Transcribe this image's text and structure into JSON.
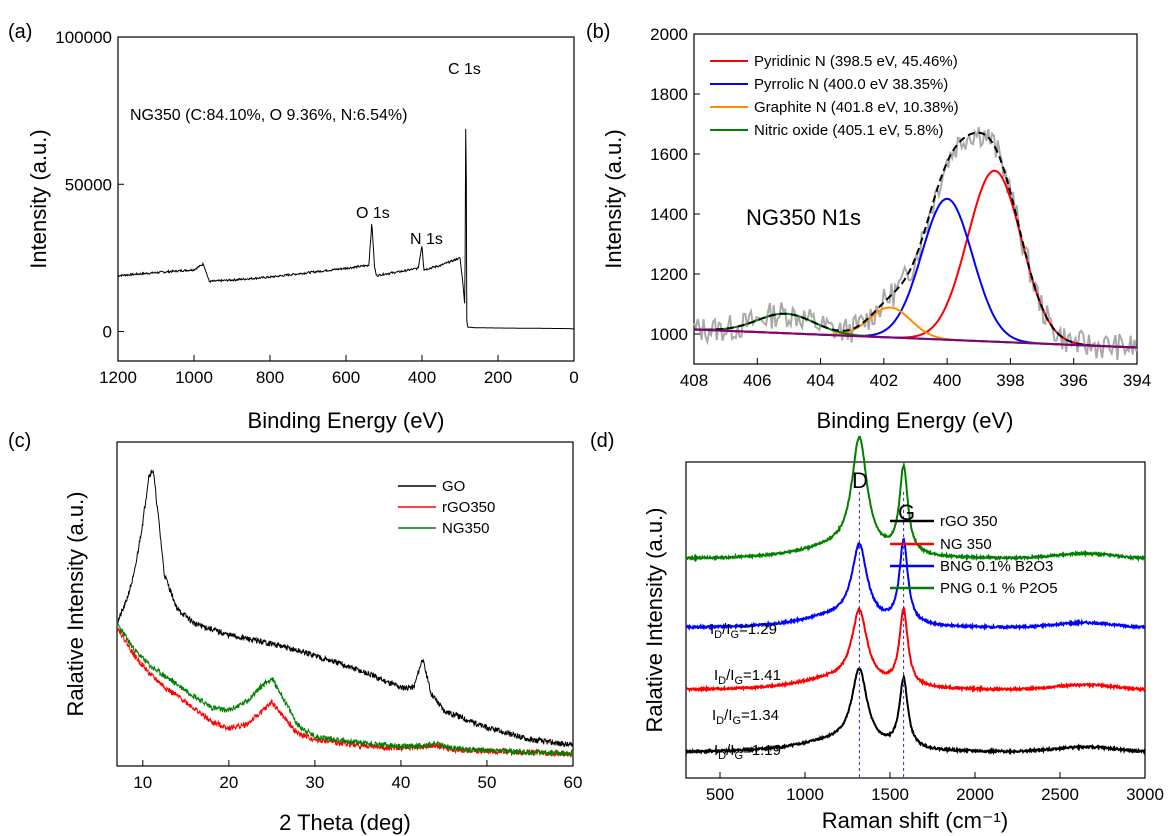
{
  "panel_labels": [
    "(a)",
    "(b)",
    "(c)",
    "(d)"
  ],
  "chart_data": [
    {
      "type": "line",
      "panel": "(a)",
      "xlabel": "Binding Energy (eV)",
      "ylabel": "Intensity (a.u.)",
      "xlim": [
        1200,
        0
      ],
      "ylim": [
        -10000,
        100000
      ],
      "xticks": [
        1200,
        1000,
        800,
        600,
        400,
        200,
        0
      ],
      "yticks": [
        0,
        50000,
        100000
      ],
      "annotations": [
        "NG350 (C:84.10%, O 9.36%, N:6.54%)",
        "C 1s",
        "O 1s",
        "N 1s"
      ],
      "series": [
        {
          "color": "#000000",
          "x": [
            1200,
            1150,
            1100,
            1050,
            1000,
            975,
            970,
            960,
            900,
            800,
            700,
            600,
            540,
            532,
            525,
            520,
            500,
            450,
            410,
            400,
            395,
            380,
            350,
            320,
            300,
            292,
            287,
            284.5,
            282,
            280,
            260,
            200,
            100,
            10,
            0
          ],
          "y": [
            19000,
            19500,
            20000,
            20500,
            21000,
            23000,
            21000,
            17000,
            17500,
            18500,
            20000,
            21500,
            22500,
            37000,
            22000,
            19000,
            19500,
            20500,
            21500,
            29500,
            21000,
            21500,
            22500,
            24000,
            25000,
            16000,
            8000,
            84000,
            4000,
            1500,
            1300,
            1200,
            1100,
            1000,
            800
          ]
        }
      ]
    },
    {
      "type": "line",
      "panel": "(b)",
      "title": "NG350 N1s",
      "xlabel": "Binding Energy (eV)",
      "ylabel": "Intensity (a.u.)",
      "xlim": [
        408,
        394
      ],
      "ylim": [
        900,
        2000
      ],
      "xticks": [
        408,
        406,
        404,
        402,
        400,
        398,
        396,
        394
      ],
      "yticks": [
        1000,
        1200,
        1400,
        1600,
        1800,
        2000
      ],
      "legend": [
        "Pyridinic N (398.5 eV, 45.46%)",
        "Pyrrolic N (400.0 eV 38.35%)",
        "Graphite N (401.8 eV, 10.38%)",
        "Nitric oxide (405.1 eV, 5.8%)"
      ],
      "series": [
        {
          "name": "Pyridinic N (398.5 eV, 45.46%)",
          "color": "#ff0000",
          "center": 398.5,
          "height": 570,
          "sigma": 0.85
        },
        {
          "name": "Pyrrolic N (400.0 eV 38.35%)",
          "color": "#0000ff",
          "center": 400.0,
          "height": 470,
          "sigma": 0.8
        },
        {
          "name": "Graphite N (401.8 eV, 10.38%)",
          "color": "#ff8c00",
          "center": 401.8,
          "height": 100,
          "sigma": 0.65
        },
        {
          "name": "Nitric oxide (405.1 eV, 5.8%)",
          "color": "#008000",
          "center": 405.1,
          "height": 65,
          "sigma": 0.9
        },
        {
          "color": "#000000",
          "style": "dashed"
        },
        {
          "color": "#aaaaaa",
          "style": "noisy"
        },
        {
          "color": "#800080",
          "x": [
            408,
            394
          ],
          "y": [
            1015,
            955
          ]
        }
      ]
    },
    {
      "type": "line",
      "panel": "(c)",
      "xlabel": "2 Theta (deg)",
      "ylabel": "Ralative Intensity (a.u.)",
      "xlim": [
        7,
        60
      ],
      "xticks": [
        10,
        20,
        30,
        40,
        50,
        60
      ],
      "legend": [
        "GO",
        "rGO350",
        "NG350"
      ],
      "series": [
        {
          "name": "GO",
          "color": "#000000",
          "x": [
            7,
            8,
            9,
            10,
            10.7,
            11.2,
            11.8,
            12.5,
            14,
            16,
            20,
            25,
            30,
            35,
            40,
            41.5,
            42.5,
            43.5,
            45,
            50,
            55,
            60
          ],
          "y": [
            0.45,
            0.52,
            0.62,
            0.8,
            0.96,
            0.98,
            0.82,
            0.62,
            0.5,
            0.45,
            0.41,
            0.38,
            0.34,
            0.29,
            0.23,
            0.23,
            0.33,
            0.21,
            0.15,
            0.09,
            0.05,
            0.03
          ]
        },
        {
          "name": "rGO350",
          "color": "#ff0000",
          "x": [
            7,
            9,
            11,
            13,
            15,
            18,
            20,
            22,
            24,
            25,
            26,
            28,
            30,
            35,
            40,
            43,
            44,
            46,
            50,
            55,
            60
          ],
          "y": [
            0.44,
            0.34,
            0.27,
            0.22,
            0.18,
            0.11,
            0.09,
            0.1,
            0.15,
            0.18,
            0.14,
            0.07,
            0.05,
            0.03,
            0.02,
            0.025,
            0.03,
            0.015,
            0.01,
            0.005,
            0.0
          ]
        },
        {
          "name": "NG350",
          "color": "#008000",
          "x": [
            7,
            9,
            11,
            13,
            15,
            18,
            20,
            22,
            24,
            25,
            26,
            28,
            30,
            35,
            40,
            43,
            44,
            46,
            50,
            55,
            60
          ],
          "y": [
            0.45,
            0.36,
            0.3,
            0.26,
            0.22,
            0.16,
            0.15,
            0.18,
            0.24,
            0.26,
            0.21,
            0.1,
            0.06,
            0.04,
            0.025,
            0.03,
            0.035,
            0.02,
            0.012,
            0.006,
            0.002
          ]
        }
      ]
    },
    {
      "type": "line",
      "panel": "(d)",
      "xlabel": "Raman shift (cm⁻¹)",
      "ylabel": "Ralative Intensity (a.u.)",
      "xlim": [
        300,
        3000
      ],
      "xticks": [
        500,
        1000,
        1500,
        2000,
        2500,
        3000
      ],
      "legend": [
        "rGO 350",
        "NG 350",
        "BNG 0.1% B2O3",
        "PNG 0.1 % P2O5"
      ],
      "peak_labels": [
        "D",
        "G"
      ],
      "peak_positions": [
        1320,
        1580
      ],
      "ratios": [
        "1.29",
        "1.41",
        "1.34",
        "1.19"
      ],
      "series": [
        {
          "name": "rGO 350",
          "color": "#000000",
          "offset": 0.0
        },
        {
          "name": "NG 350",
          "color": "#ff0000",
          "offset": 0.18
        },
        {
          "name": "BNG 0.1% B2O3",
          "color": "#0000ff",
          "offset": 0.36
        },
        {
          "name": "PNG 0.1 % P2O5",
          "color": "#008000",
          "offset": 0.56
        }
      ]
    }
  ]
}
